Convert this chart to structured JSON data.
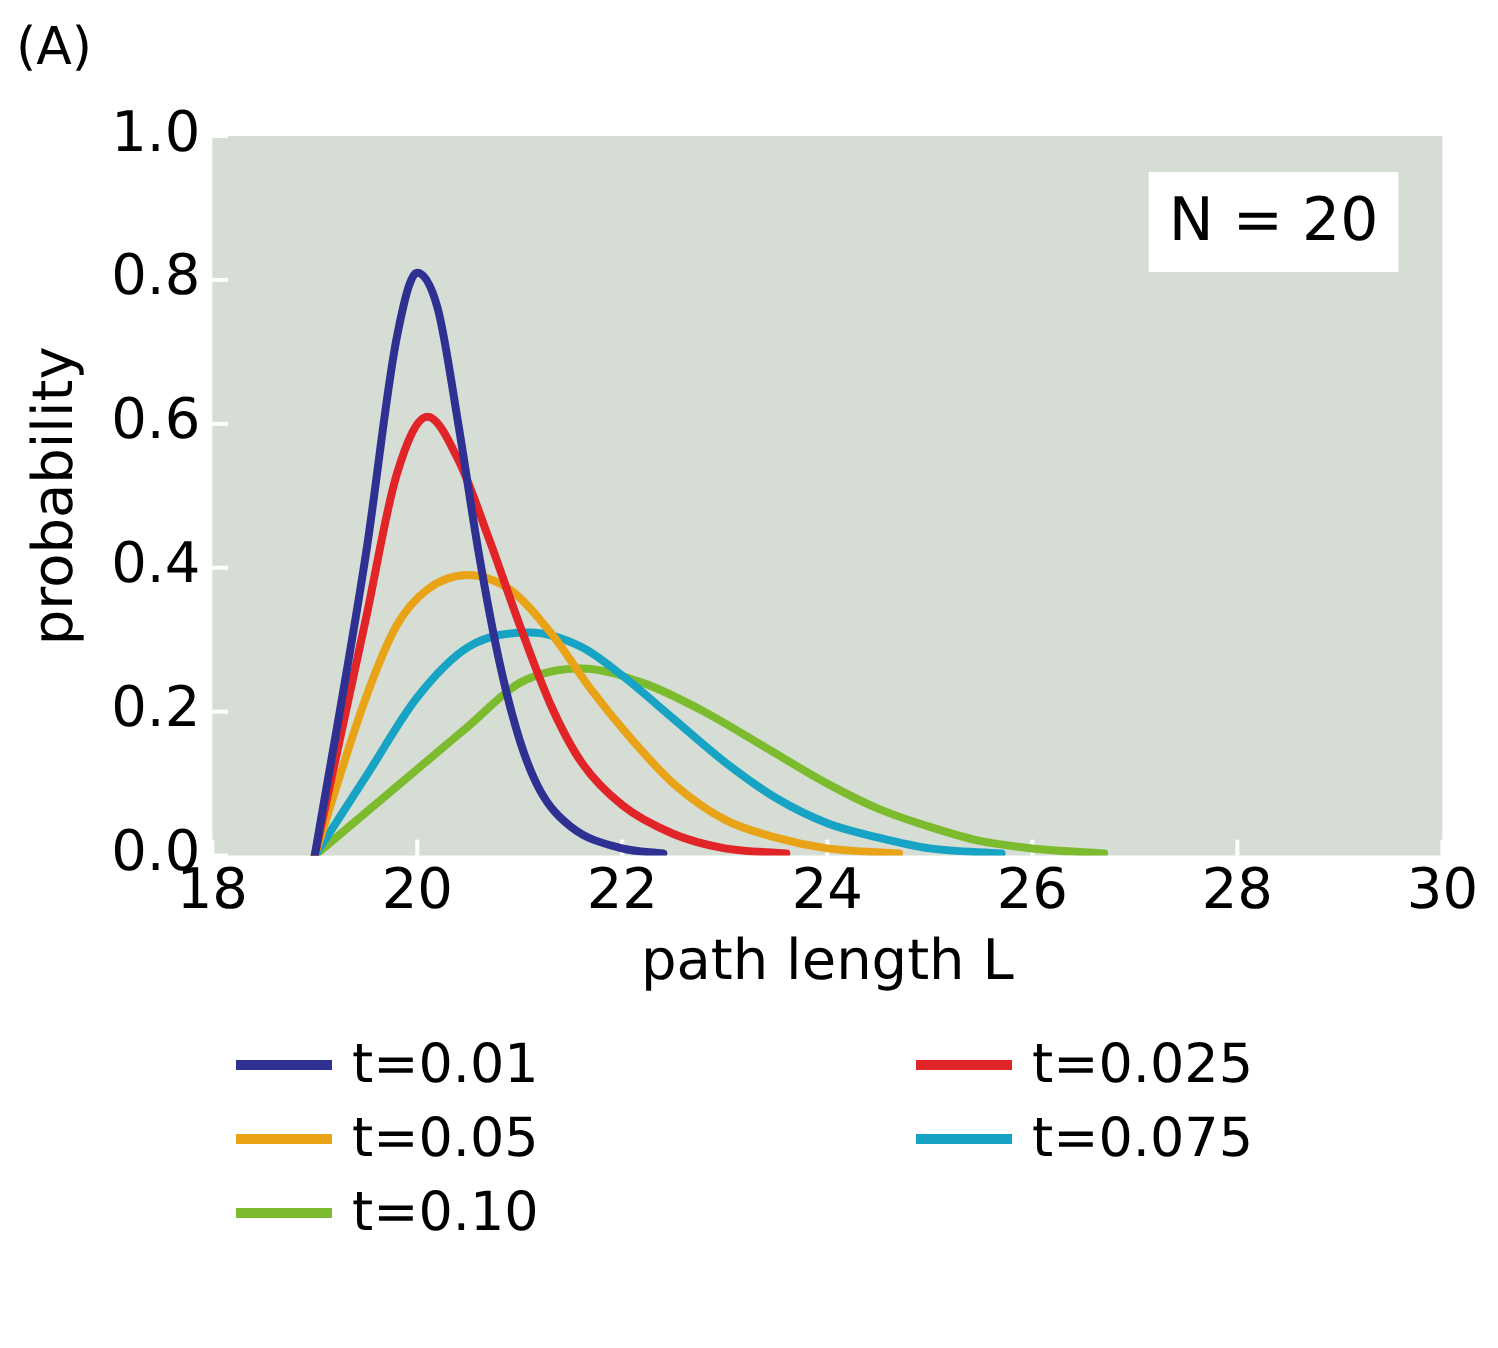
{
  "chart_data": {
    "type": "line",
    "xlabel": "path length L",
    "ylabel": "probability",
    "xlim": [
      18,
      30
    ],
    "xticks": [
      18,
      20,
      22,
      24,
      26,
      28,
      30
    ],
    "ylim": [
      0,
      1
    ],
    "yticks": [
      {
        "value": 0,
        "label": "0.0"
      },
      0.2,
      0.4,
      0.6,
      0.8,
      {
        "value": 1,
        "label": "1.0"
      }
    ],
    "annotations": [
      "(A)",
      "N = 20"
    ],
    "legend": "bottom",
    "marker": "none",
    "line_style": "solid",
    "series": [
      {
        "name": "t=0.01",
        "color": "#2e3192",
        "x": [
          19,
          19.5,
          19.8,
          20,
          20.2,
          20.4,
          20.6,
          20.8,
          21.0,
          21.2,
          21.5,
          22,
          22.4
        ],
        "values": [
          0,
          0.42,
          0.72,
          0.81,
          0.76,
          0.6,
          0.42,
          0.27,
          0.16,
          0.09,
          0.04,
          0.01,
          0.003
        ]
      },
      {
        "name": "t=0.025",
        "color": "#e02428",
        "x": [
          19,
          19.5,
          19.8,
          20.1,
          20.4,
          20.7,
          21,
          21.3,
          21.6,
          22,
          22.5,
          23,
          23.6
        ],
        "values": [
          0,
          0.33,
          0.53,
          0.61,
          0.55,
          0.44,
          0.32,
          0.21,
          0.13,
          0.07,
          0.03,
          0.01,
          0.003
        ]
      },
      {
        "name": "t=0.05",
        "color": "#e8a317",
        "x": [
          19,
          19.5,
          19.8,
          20.1,
          20.5,
          20.9,
          21.3,
          21.7,
          22.1,
          22.5,
          23,
          23.5,
          24,
          24.7
        ],
        "values": [
          0,
          0.22,
          0.32,
          0.37,
          0.39,
          0.37,
          0.31,
          0.23,
          0.16,
          0.1,
          0.05,
          0.025,
          0.01,
          0.003
        ]
      },
      {
        "name": "t=0.075",
        "color": "#17a3c4",
        "x": [
          19,
          19.5,
          20,
          20.5,
          21.1,
          21.6,
          22,
          22.5,
          23,
          23.5,
          24,
          24.5,
          25,
          25.7
        ],
        "values": [
          0,
          0.11,
          0.22,
          0.29,
          0.31,
          0.29,
          0.25,
          0.19,
          0.13,
          0.08,
          0.045,
          0.025,
          0.01,
          0.003
        ]
      },
      {
        "name": "t=0.10",
        "color": "#7cbb2e",
        "x": [
          19,
          19.5,
          20,
          20.5,
          21,
          21.6,
          22.2,
          22.8,
          23.4,
          24,
          24.5,
          25,
          25.5,
          26,
          26.7
        ],
        "values": [
          0,
          0.06,
          0.12,
          0.18,
          0.24,
          0.26,
          0.24,
          0.2,
          0.15,
          0.1,
          0.065,
          0.04,
          0.02,
          0.01,
          0.003
        ]
      }
    ]
  }
}
